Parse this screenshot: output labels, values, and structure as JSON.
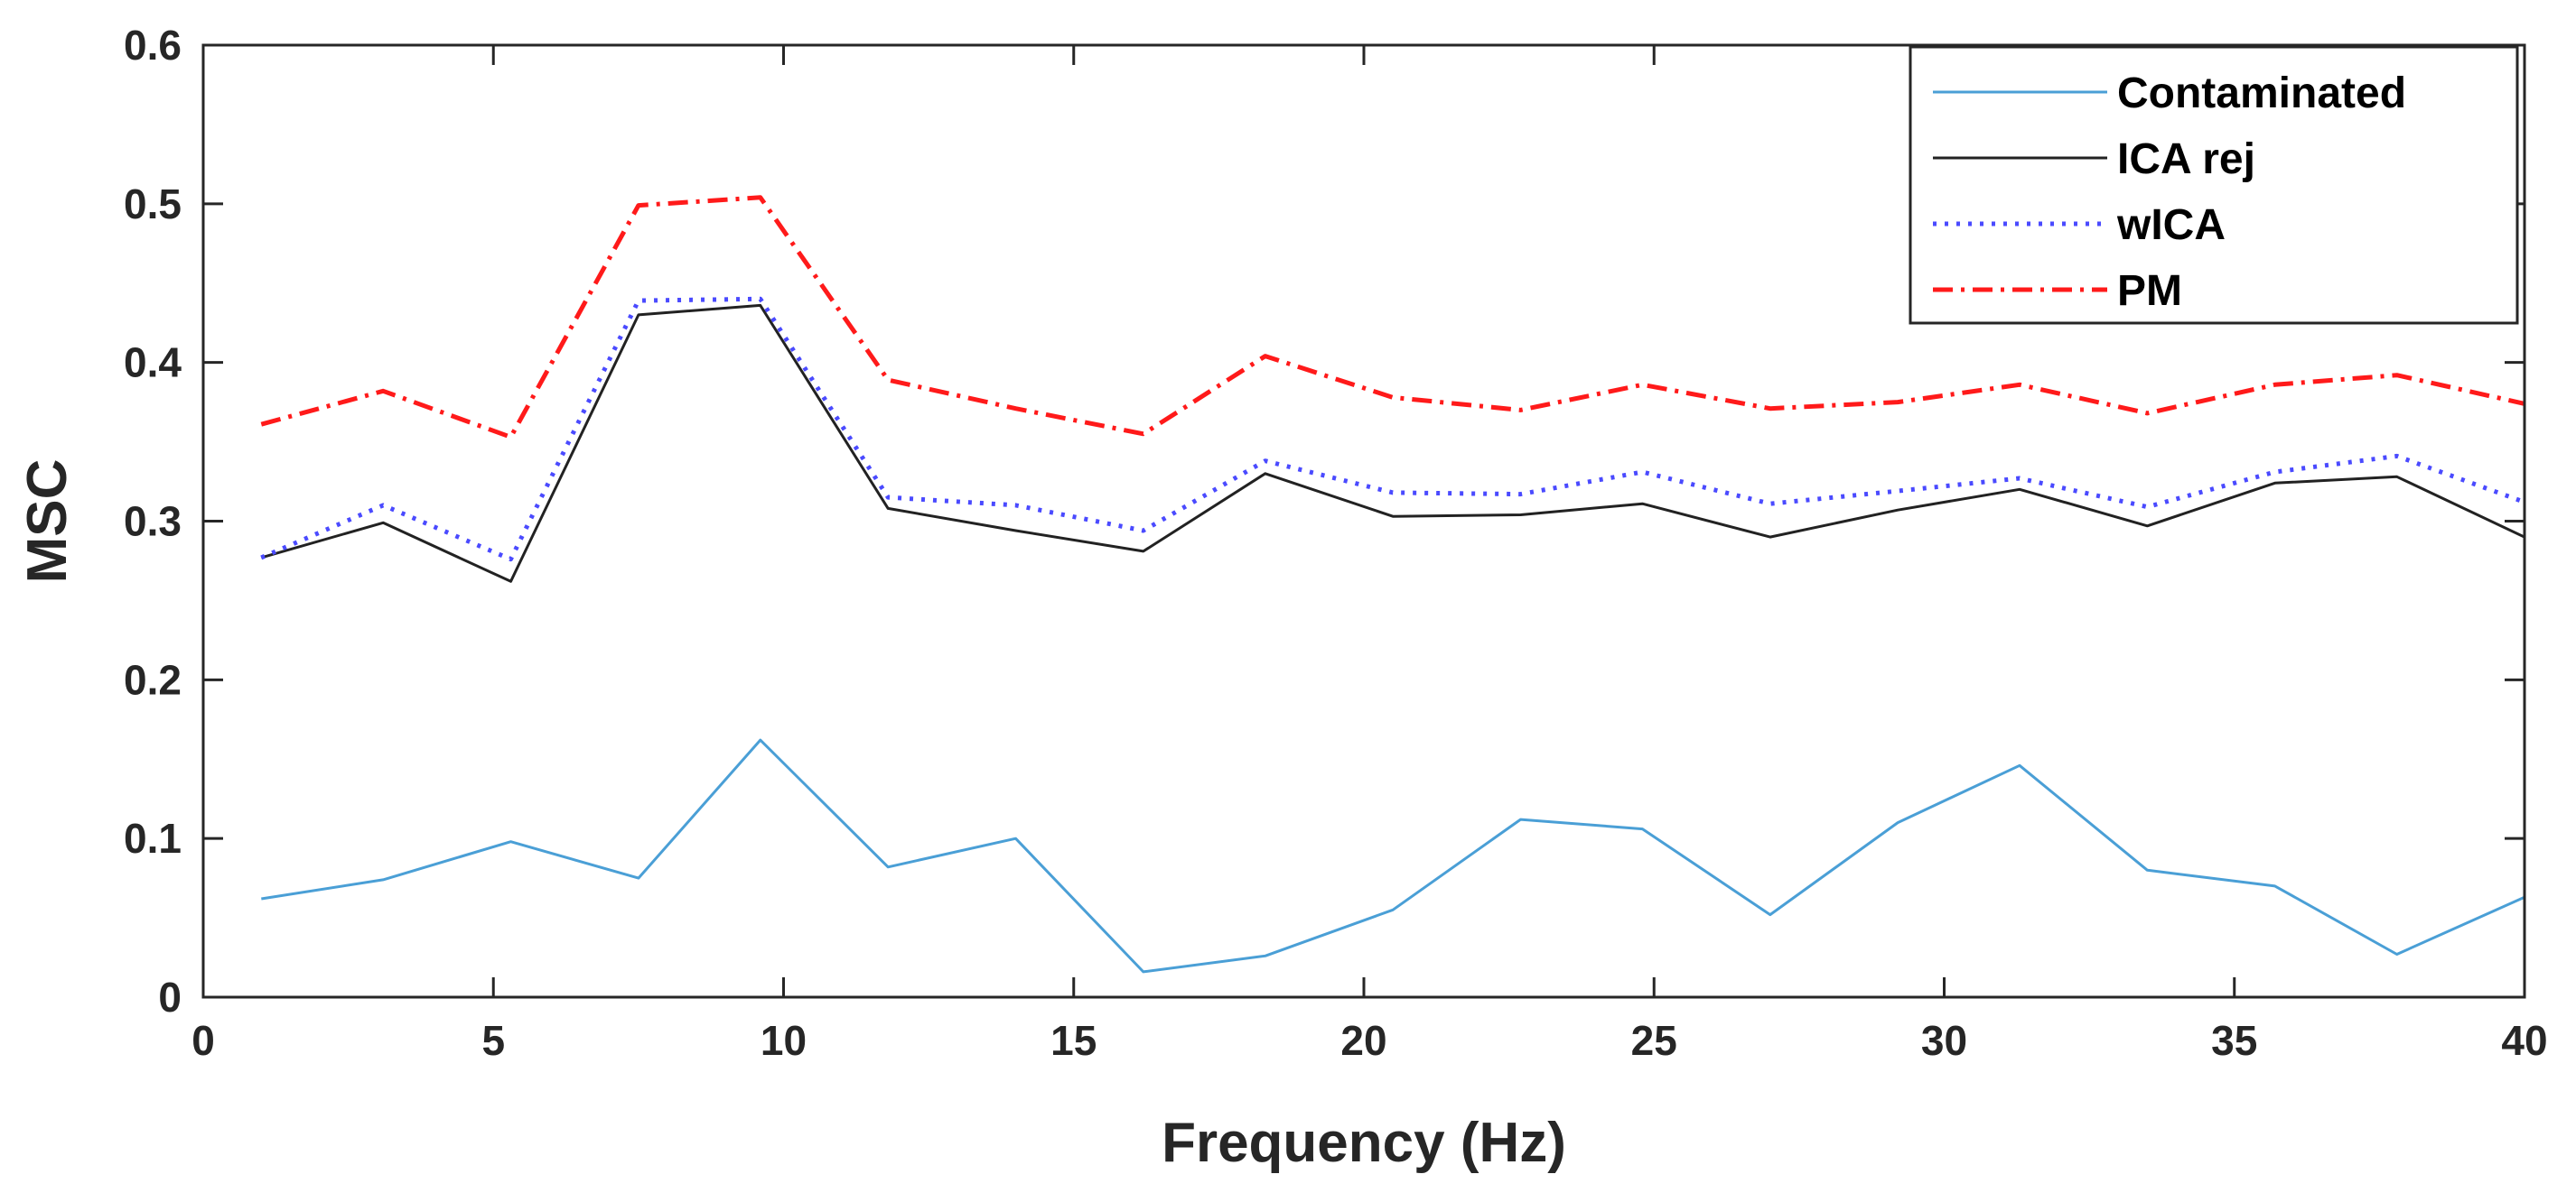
{
  "chart_data": {
    "type": "line",
    "title": "",
    "xlabel": "Frequency (Hz)",
    "ylabel": "MSC",
    "xlim": [
      0,
      40
    ],
    "ylim": [
      0,
      0.6
    ],
    "xticks": [
      0,
      5,
      10,
      15,
      20,
      25,
      30,
      35,
      40
    ],
    "xtick_labels": [
      "0",
      "5",
      "10",
      "15",
      "20",
      "25",
      "30",
      "35",
      "40"
    ],
    "yticks": [
      0,
      0.1,
      0.2,
      0.3,
      0.4,
      0.5,
      0.6
    ],
    "ytick_labels": [
      "0",
      "0.1",
      "0.2",
      "0.3",
      "0.4",
      "0.5",
      "0.6"
    ],
    "grid": false,
    "legend_position": "top-right",
    "x": [
      1.0,
      3.1,
      5.3,
      7.5,
      9.6,
      11.8,
      14.0,
      16.2,
      18.3,
      20.5,
      22.7,
      24.8,
      27.0,
      29.2,
      31.3,
      33.5,
      35.7,
      37.8,
      40.0
    ],
    "series": [
      {
        "name": "Contaminated",
        "color": "#4a9fd6",
        "style": "solid",
        "values": [
          0.062,
          0.074,
          0.098,
          0.075,
          0.162,
          0.082,
          0.1,
          0.016,
          0.026,
          0.055,
          0.112,
          0.106,
          0.052,
          0.11,
          0.146,
          0.08,
          0.07,
          0.027,
          0.063
        ]
      },
      {
        "name": "ICA rej",
        "color": "#222222",
        "style": "solid",
        "values": [
          0.277,
          0.299,
          0.262,
          0.43,
          0.436,
          0.308,
          0.294,
          0.281,
          0.33,
          0.303,
          0.304,
          0.311,
          0.29,
          0.307,
          0.32,
          0.297,
          0.324,
          0.328,
          0.29
        ]
      },
      {
        "name": "wICA",
        "color": "#4a4aff",
        "style": "dotted",
        "values": [
          0.277,
          0.31,
          0.276,
          0.439,
          0.44,
          0.315,
          0.31,
          0.294,
          0.338,
          0.318,
          0.317,
          0.331,
          0.311,
          0.319,
          0.327,
          0.309,
          0.331,
          0.341,
          0.312
        ]
      },
      {
        "name": "PM",
        "color": "#ff1a1a",
        "style": "dashdot",
        "values": [
          0.361,
          0.382,
          0.353,
          0.499,
          0.504,
          0.389,
          0.371,
          0.355,
          0.404,
          0.378,
          0.37,
          0.386,
          0.371,
          0.375,
          0.386,
          0.368,
          0.386,
          0.392,
          0.374
        ]
      }
    ]
  }
}
